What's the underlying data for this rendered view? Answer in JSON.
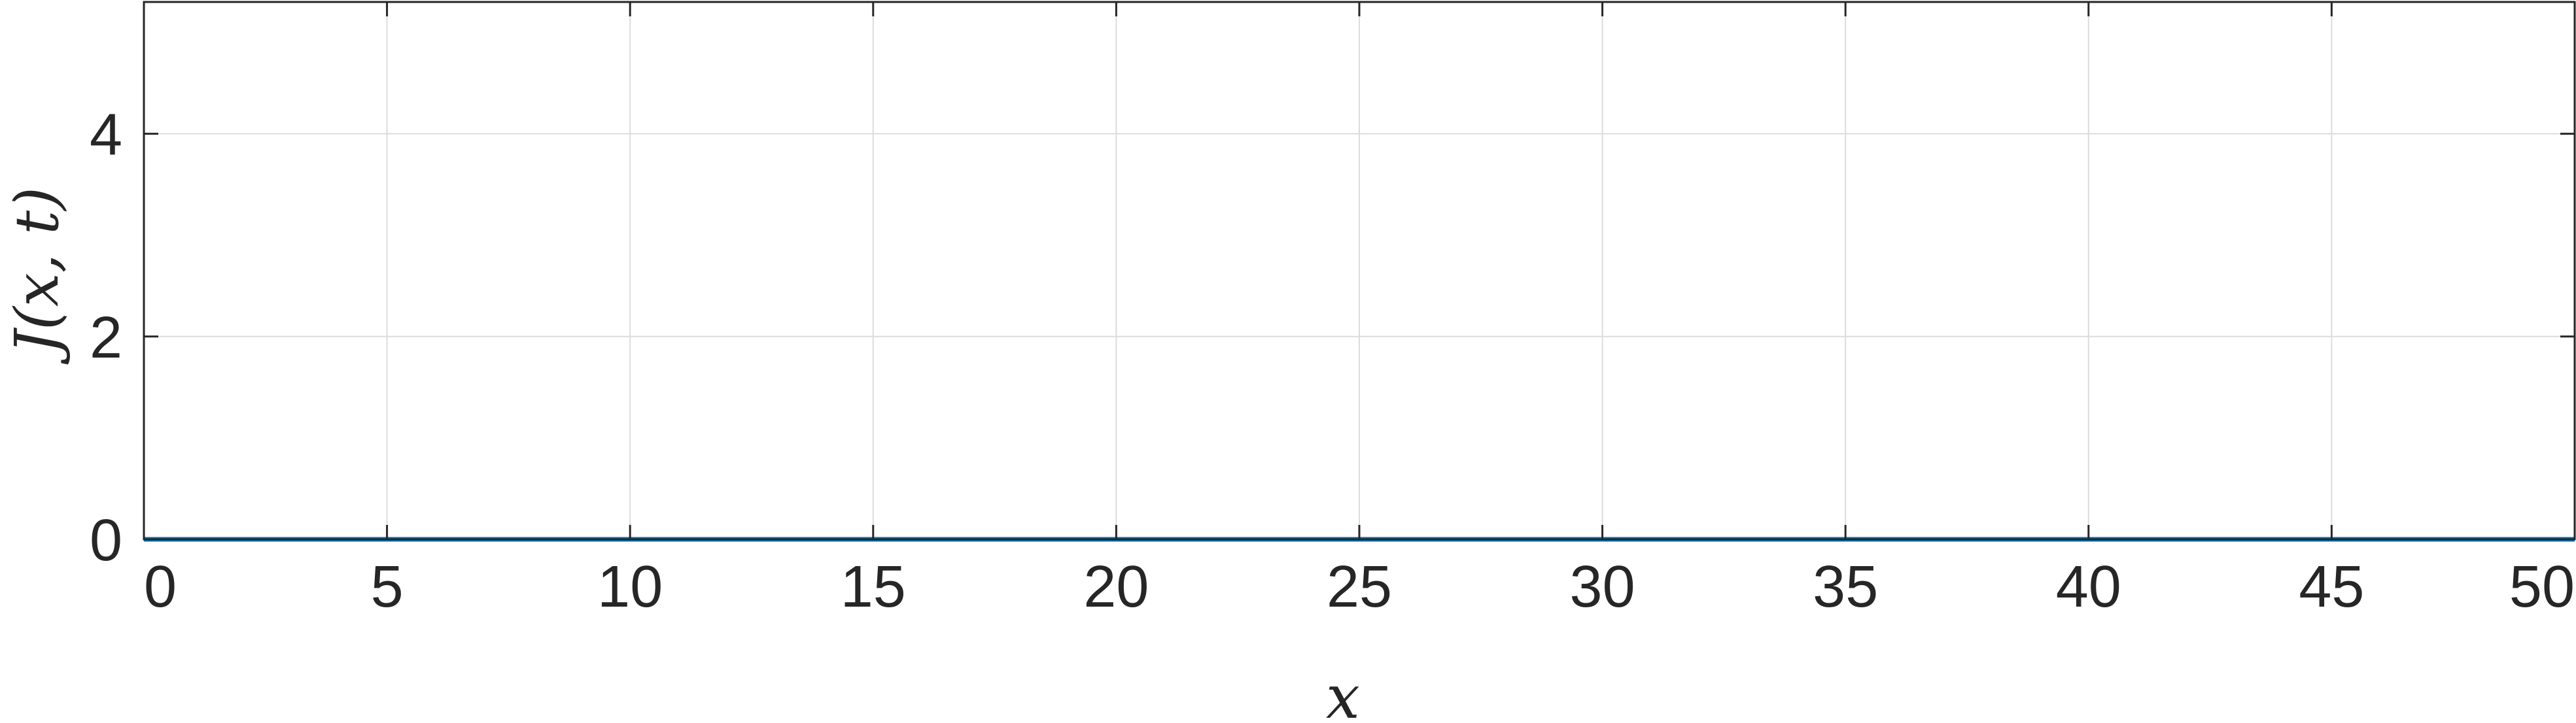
{
  "chart_data": {
    "type": "line",
    "title": "",
    "xlabel": "x",
    "ylabel": "J(x, t)",
    "xlim": [
      0,
      50
    ],
    "ylim": [
      0,
      5.3
    ],
    "xticks": [
      0,
      5,
      10,
      15,
      20,
      25,
      30,
      35,
      40,
      45,
      50
    ],
    "yticks": [
      0,
      2,
      4
    ],
    "grid": true,
    "series": [
      {
        "x": [
          0,
          50
        ],
        "y": [
          0,
          0
        ],
        "color": "#0072BD"
      }
    ]
  }
}
